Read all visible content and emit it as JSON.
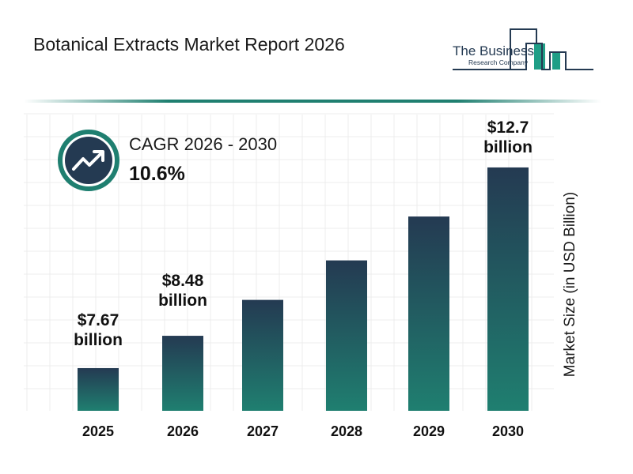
{
  "header": {
    "title": "Botanical Extracts Market Report 2026"
  },
  "logo": {
    "line1": "The Business",
    "line2": "Research Company"
  },
  "cagr": {
    "label": "CAGR 2026 - 2030",
    "value": "10.6%",
    "icon": "trend-up-icon"
  },
  "colors": {
    "bar_top": "#243a52",
    "bar_bottom": "#1f7f70",
    "accent": "#1f7f70",
    "icon_bg": "#243a52"
  },
  "chart_data": {
    "type": "bar",
    "title": "Botanical Extracts Market Report 2026",
    "categories": [
      "2025",
      "2026",
      "2027",
      "2028",
      "2029",
      "2030"
    ],
    "values": [
      7.67,
      8.48,
      9.38,
      10.37,
      11.47,
      12.7
    ],
    "data_labels": [
      {
        "index": 0,
        "value": "$7.67",
        "unit": "billion"
      },
      {
        "index": 1,
        "value": "$8.48",
        "unit": "billion"
      },
      {
        "index": 5,
        "value": "$12.7",
        "unit": "billion"
      }
    ],
    "xlabel": "",
    "ylabel": "Market Size (in USD Billion)",
    "grid": true
  }
}
